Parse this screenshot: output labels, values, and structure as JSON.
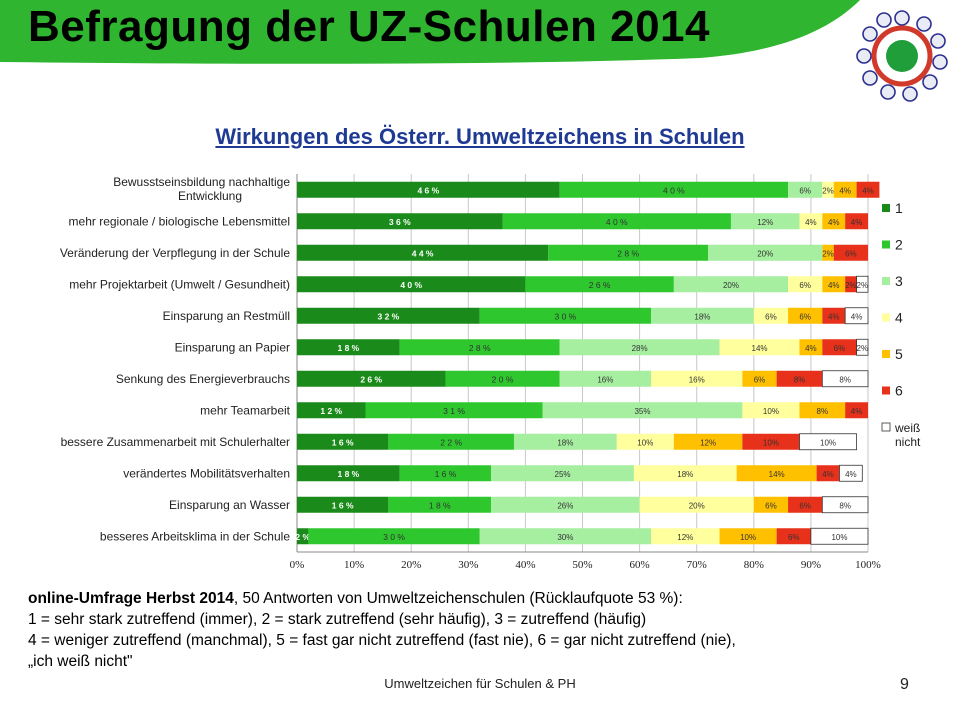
{
  "slide": {
    "title": "Befragung der UZ-Schulen 2014",
    "footer": "Umweltzeichen für Schulen & PH",
    "page_number": "9"
  },
  "colors": {
    "header_green": "#2fb52f",
    "title_blue": "#1f3a93",
    "s1": "#1a8a1a",
    "s2": "#2ec72e",
    "s3": "#a6eea0",
    "s4": "#ffff9e",
    "s5": "#ffc000",
    "s6": "#e8311a",
    "s7": "#ffffff"
  },
  "notes": {
    "line1_bold": "online-Umfrage Herbst 2014",
    "line1_rest": ", 50 Antworten von Umweltzeichenschulen (Rücklaufquote 53 %):",
    "line2": "1 = sehr stark zutreffend (immer), 2 = stark zutreffend (sehr häufig), 3 = zutreffend (häufig)",
    "line3": "4 = weniger zutreffend (manchmal), 5 = fast gar nicht zutreffend (fast nie), 6 = gar nicht zutreffend (nie),",
    "line4": "„ich weiß nicht\""
  },
  "chart_data": {
    "type": "bar",
    "orientation": "horizontal",
    "stacked": "percent",
    "title": "Wirkungen des Österr. Umweltzeichens in Schulen",
    "legend_position": "right",
    "xlim": [
      0,
      100
    ],
    "x_ticks": [
      "0%",
      "10%",
      "20%",
      "30%",
      "40%",
      "50%",
      "60%",
      "70%",
      "80%",
      "90%",
      "100%"
    ],
    "categories": [
      "Bewusstseinsbildung nachhaltige Entwicklung",
      "mehr regionale / biologische Lebensmittel",
      "Veränderung der Verpflegung in der Schule",
      "mehr Projektarbeit (Umwelt / Gesundheit)",
      "Einsparung an Restmüll",
      "Einsparung an Papier",
      "Senkung des Energieverbrauchs",
      "mehr Teamarbeit",
      "bessere Zusammenarbeit mit Schulerhalter",
      "verändertes Mobilitätsverhalten",
      "Einsparung an Wasser",
      "besseres Arbeitsklima in der Schule"
    ],
    "series": [
      {
        "name": "1",
        "values": [
          46,
          36,
          44,
          40,
          32,
          18,
          26,
          12,
          16,
          18,
          16,
          2
        ],
        "labels": [
          "4 6 %",
          "3 6 %",
          "4 4 %",
          "4 0 %",
          "3 2 %",
          "1 8 %",
          "2 6 %",
          "1 2 %",
          "1 6 %",
          "1 8 %",
          "1 6 %",
          "2 %"
        ]
      },
      {
        "name": "2",
        "values": [
          40,
          40,
          28,
          26,
          30,
          28,
          20,
          31,
          22,
          16,
          18,
          30
        ],
        "labels": [
          "4 0 %",
          "4 0 %",
          "2 8 %",
          "2 6 %",
          "3 0 %",
          "2 8 %",
          "2 0 %",
          "3 1 %",
          "2 2 %",
          "1 6 %",
          "1 8 %",
          "3 0 %"
        ]
      },
      {
        "name": "3",
        "values": [
          6,
          12,
          20,
          20,
          18,
          28,
          16,
          35,
          18,
          25,
          26,
          30
        ],
        "labels": [
          "6%",
          "12%",
          "20%",
          "20%",
          "18%",
          "28%",
          "16%",
          "35%",
          "18%",
          "25%",
          "26%",
          "30%"
        ]
      },
      {
        "name": "4",
        "values": [
          2,
          4,
          0,
          6,
          6,
          14,
          16,
          10,
          10,
          18,
          20,
          12
        ],
        "labels": [
          "2%",
          "4%",
          "",
          "6%",
          "6%",
          "14%",
          "16%",
          "10%",
          "10%",
          "18%",
          "20%",
          "12%"
        ]
      },
      {
        "name": "5",
        "values": [
          4,
          4,
          2,
          4,
          6,
          4,
          6,
          8,
          12,
          14,
          6,
          10
        ],
        "labels": [
          "4%",
          "4%",
          "2%",
          "4%",
          "6%",
          "4%",
          "6%",
          "8%",
          "12%",
          "14%",
          "6%",
          "10%"
        ]
      },
      {
        "name": "6",
        "values": [
          4,
          4,
          6,
          2,
          4,
          6,
          8,
          4,
          10,
          4,
          6,
          6
        ],
        "labels": [
          "4%",
          "4%",
          "6%",
          "2%",
          "4%",
          "6%",
          "8%",
          "4%",
          "10%",
          "4%",
          "6%",
          "6%"
        ]
      },
      {
        "name": "weiß nicht",
        "values": [
          0,
          0,
          0,
          2,
          4,
          2,
          8,
          0,
          10,
          4,
          8,
          10
        ],
        "labels": [
          "",
          "",
          "",
          "2%",
          "4%",
          "2%",
          "8%",
          "",
          "10%",
          "4%",
          "8%",
          "10%"
        ]
      }
    ]
  }
}
